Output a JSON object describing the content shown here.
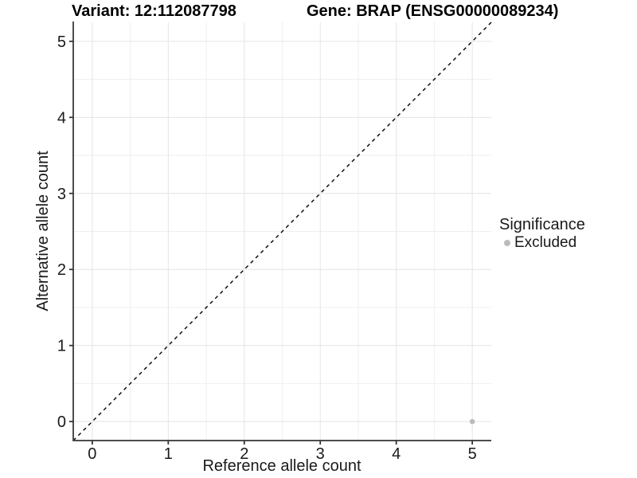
{
  "chart_data": {
    "type": "scatter",
    "title_left": "Variant: 12:112087798",
    "title_right": "Gene: BRAP (ENSG00000089234)",
    "xlabel": "Reference allele count",
    "ylabel": "Alternative allele count",
    "xlim": [
      -0.25,
      5.25
    ],
    "ylim": [
      -0.25,
      5.25
    ],
    "x_ticks": [
      0,
      1,
      2,
      3,
      4,
      5
    ],
    "y_ticks": [
      0,
      1,
      2,
      3,
      4,
      5
    ],
    "grid": "major and minor gridlines on white background",
    "legend_position": "right",
    "series": [
      {
        "name": "Excluded",
        "color": "#bcbcbc",
        "marker": "circle",
        "points": [
          {
            "x": 5,
            "y": 0
          }
        ]
      }
    ],
    "identity_line": {
      "style": "dashed",
      "color": "#000000",
      "from": {
        "x": -0.25,
        "y": -0.25
      },
      "to": {
        "x": 5.25,
        "y": 5.25
      }
    },
    "legend": {
      "title": "Significance",
      "items": [
        {
          "label": "Excluded",
          "color": "#bcbcbc",
          "marker": "circle"
        }
      ]
    },
    "colors": {
      "grid_major": "#e4e4e4",
      "grid_minor": "#efefef",
      "axis_line": "#4d4d4d",
      "tick_mark": "#333333",
      "text": "#1a1a1a",
      "background": "#ffffff"
    }
  }
}
